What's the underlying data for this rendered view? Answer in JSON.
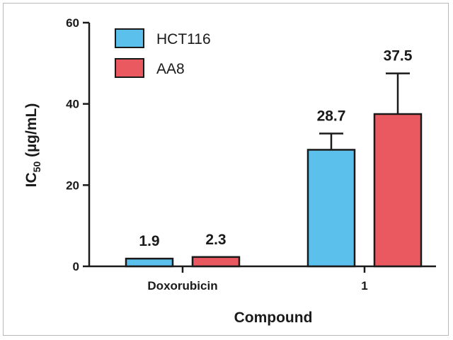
{
  "chart_data": {
    "type": "bar",
    "title": "",
    "xlabel": "Compound",
    "ylabel_main": "IC",
    "ylabel_sub": "50",
    "ylabel_rest": " (µg/mL)",
    "categories": [
      "Doxorubicin",
      "1"
    ],
    "ylim": [
      0,
      60
    ],
    "yticks": [
      0,
      20,
      40,
      60
    ],
    "series": [
      {
        "name": "HCT116",
        "color": "#5bc0eb",
        "values": [
          1.9,
          28.7
        ],
        "errors": [
          0,
          4.0
        ],
        "labels": [
          "1.9",
          "28.7"
        ]
      },
      {
        "name": "AA8",
        "color": "#e9595f",
        "values": [
          2.3,
          37.5
        ],
        "errors": [
          0,
          10.0
        ],
        "labels": [
          "2.3",
          "37.5"
        ]
      }
    ],
    "legend_position": "top-left",
    "grid": false
  }
}
